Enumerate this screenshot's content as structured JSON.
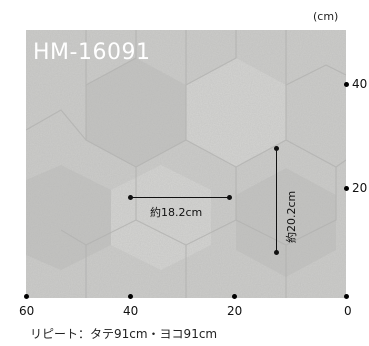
{
  "product": {
    "code": "HM-16091"
  },
  "scale": {
    "unit": "(cm)",
    "right_ticks": [
      "40",
      "20",
      "0"
    ],
    "bottom_ticks": [
      "60",
      "40",
      "20",
      "0"
    ]
  },
  "measurements": {
    "width_label": "約18.2cm",
    "height_label": "約20.2cm"
  },
  "footer": {
    "repeat_text": "リピート：タテ91cm・ヨコ91cm"
  },
  "colors": {
    "stone": "#cfcfcd",
    "stone_dark": "#b9b9b7",
    "ink": "#111111"
  }
}
